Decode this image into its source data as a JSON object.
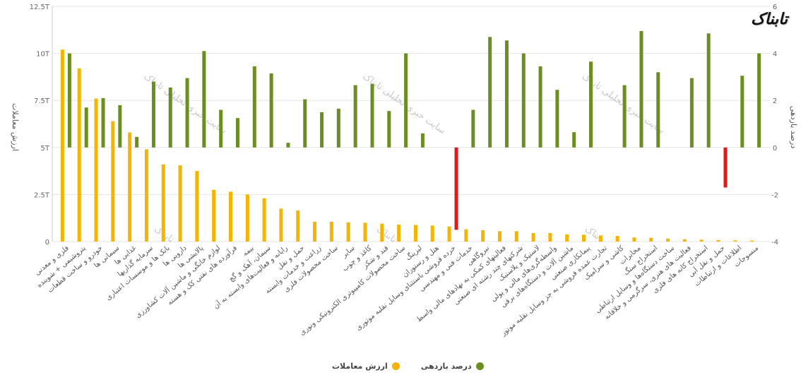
{
  "logo": {
    "text": "تابناک"
  },
  "legend": {
    "value_label": "ارزش معاملات",
    "return_label": "درصد بازدهی"
  },
  "watermark": {
    "text": "سایت خبری تحلیلی تابناک",
    "short": "تابناک"
  },
  "colors": {
    "value": "#f4b400",
    "return_positive": "#6b8e23",
    "return_negative": "#e01a1a",
    "grid": "#e6e6e6",
    "axis": "#cccccc"
  },
  "chart_data": {
    "type": "bar",
    "title": "",
    "left_axis": {
      "label": "ارزش معاملات",
      "ticks": [
        "0",
        "2.5T",
        "5T",
        "7.5T",
        "10T",
        "12.5T"
      ],
      "range": [
        0,
        12.5
      ]
    },
    "right_axis": {
      "label": "درصد بازدهی",
      "ticks": [
        "-4",
        "-2",
        "0",
        "2",
        "4",
        "6"
      ],
      "range": [
        -4,
        6
      ]
    },
    "categories": [
      "فلزی و معدنی",
      "پتروشیمی + شوینده",
      "خودرو و ساخت قطعات",
      "سیمانی ها",
      "غذایی ها",
      "سرمایه گذاریها",
      "بانک ها و موسسات اعتباری",
      "دارویی ها",
      "پالایشی ها",
      "لوازم خانگی و ماشین آلات کشاورزی",
      "فرآورده های نفتی کک و هسته",
      "بیمه",
      "سیمان، آهک و گچ",
      "رایانه و فعالیت‌های وابسته به آن",
      "حمل و نقل",
      "زراعت و خدمات وابسته",
      "ساخت محصولات فلزی",
      "سایر",
      "کاغذ و چوب",
      "قند و شکر",
      "ساخت محصولات کامپیوتری الکترونیکی ونوری",
      "لیزینگ",
      "هتل و رستوران",
      "خرده فروشی باستثنای وسایل نقلیه موتوری",
      "خدمات فنی و مهندسی",
      "نیروگاهی",
      "فعالیتهای کمکی به نهادهای مالی واسط",
      "شرکتهای چند رشته ای صنعتی",
      "لاستیک و پلاستیک",
      "واسطه‌گری‌های مالی و پولی",
      "ماشین آلات و دستگاه‌های برقی",
      "پیمانکاری صنعتی",
      "تجارت عمده فروشی به جز وسایل نقلیه موتور",
      "کاشی و سرامیک",
      "مخابرات",
      "استخراج سنگ",
      "ساخت دستگاه‌ها و وسایل ارتباطی",
      "فعالیت های هنری، سرگرمی و خلاقانه",
      "استخراج کانه های فلزی",
      "حمل و نقل آبی",
      "اطلاعات و ارتباطات",
      "منسوجات"
    ],
    "series": [
      {
        "name": "ارزش معاملات",
        "axis": "left",
        "unit": "T",
        "values": [
          10.2,
          9.2,
          7.6,
          6.4,
          5.8,
          4.9,
          4.1,
          4.05,
          3.75,
          2.75,
          2.65,
          2.5,
          2.3,
          1.75,
          1.65,
          1.05,
          1.05,
          1.02,
          1.0,
          0.95,
          0.9,
          0.88,
          0.85,
          0.8,
          0.65,
          0.6,
          0.55,
          0.55,
          0.45,
          0.45,
          0.38,
          0.36,
          0.32,
          0.3,
          0.22,
          0.2,
          0.16,
          0.12,
          0.1,
          0.08,
          0.06,
          0.05
        ]
      },
      {
        "name": "درصد بازدهی",
        "axis": "right",
        "unit": "%",
        "values": [
          4.0,
          1.7,
          2.1,
          1.8,
          0.45,
          2.8,
          2.55,
          2.95,
          4.1,
          1.6,
          1.25,
          3.45,
          3.15,
          0.2,
          2.05,
          1.5,
          1.65,
          2.65,
          2.7,
          1.55,
          4.0,
          0.6,
          0.0,
          -3.5,
          1.6,
          4.7,
          4.55,
          4.0,
          3.45,
          2.45,
          0.65,
          3.65,
          0.0,
          2.65,
          4.95,
          3.2,
          0.0,
          2.95,
          4.85,
          -1.7,
          3.05,
          4.0
        ]
      }
    ],
    "grid": true,
    "legend_position": "bottom"
  }
}
